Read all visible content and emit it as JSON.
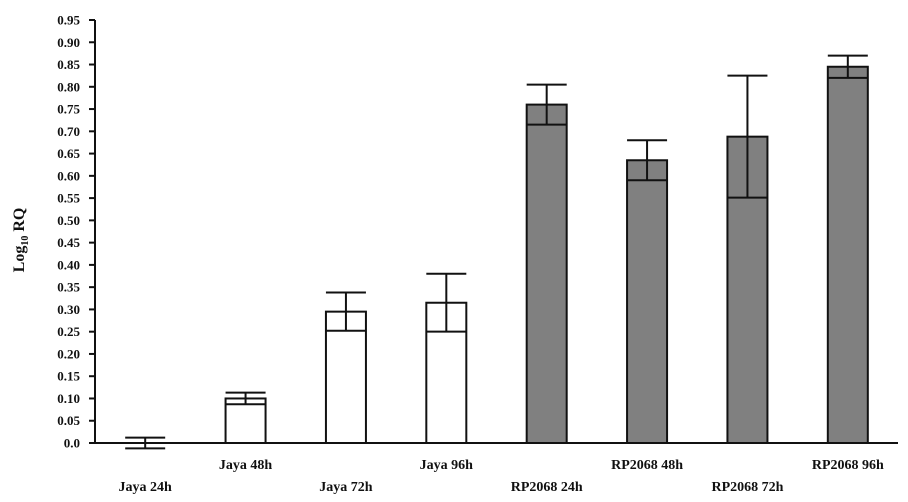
{
  "chart_data": {
    "type": "bar",
    "title": "",
    "xlabel": "",
    "ylabel": "Log",
    "ylabel_subscript": "10",
    "ylabel_suffix": " RQ",
    "ylim": [
      0,
      0.95
    ],
    "yticks": [
      0.0,
      0.05,
      0.1,
      0.15,
      0.2,
      0.25,
      0.3,
      0.35,
      0.4,
      0.45,
      0.5,
      0.55,
      0.6,
      0.65,
      0.7,
      0.75,
      0.8,
      0.85,
      0.9,
      0.95
    ],
    "ytick_labels": [
      "0.0",
      "0.05",
      "0.10",
      "0.15",
      "0.20",
      "0.25",
      "0.30",
      "0.35",
      "0.40",
      "0.45",
      "0.50",
      "0.55",
      "0.60",
      "0.65",
      "0.70",
      "0.75",
      "0.80",
      "0.85",
      "0.90",
      "0.95"
    ],
    "categories": [
      "Jaya 24h",
      "Jaya 48h",
      "Jaya 72h",
      "Jaya 96h",
      "RP2068 24h",
      "RP2068 48h",
      "RP2068 72h",
      "RP2068 96h"
    ],
    "values": [
      0.0,
      0.1,
      0.295,
      0.315,
      0.76,
      0.635,
      0.688,
      0.845
    ],
    "error": [
      0.012,
      0.013,
      0.043,
      0.065,
      0.045,
      0.045,
      0.137,
      0.025
    ],
    "bar_colors": [
      "#ffffff",
      "#ffffff",
      "#ffffff",
      "#ffffff",
      "#808080",
      "#808080",
      "#808080",
      "#808080"
    ],
    "bar_edge_color": "#111111",
    "grid": false,
    "legend": "none"
  }
}
